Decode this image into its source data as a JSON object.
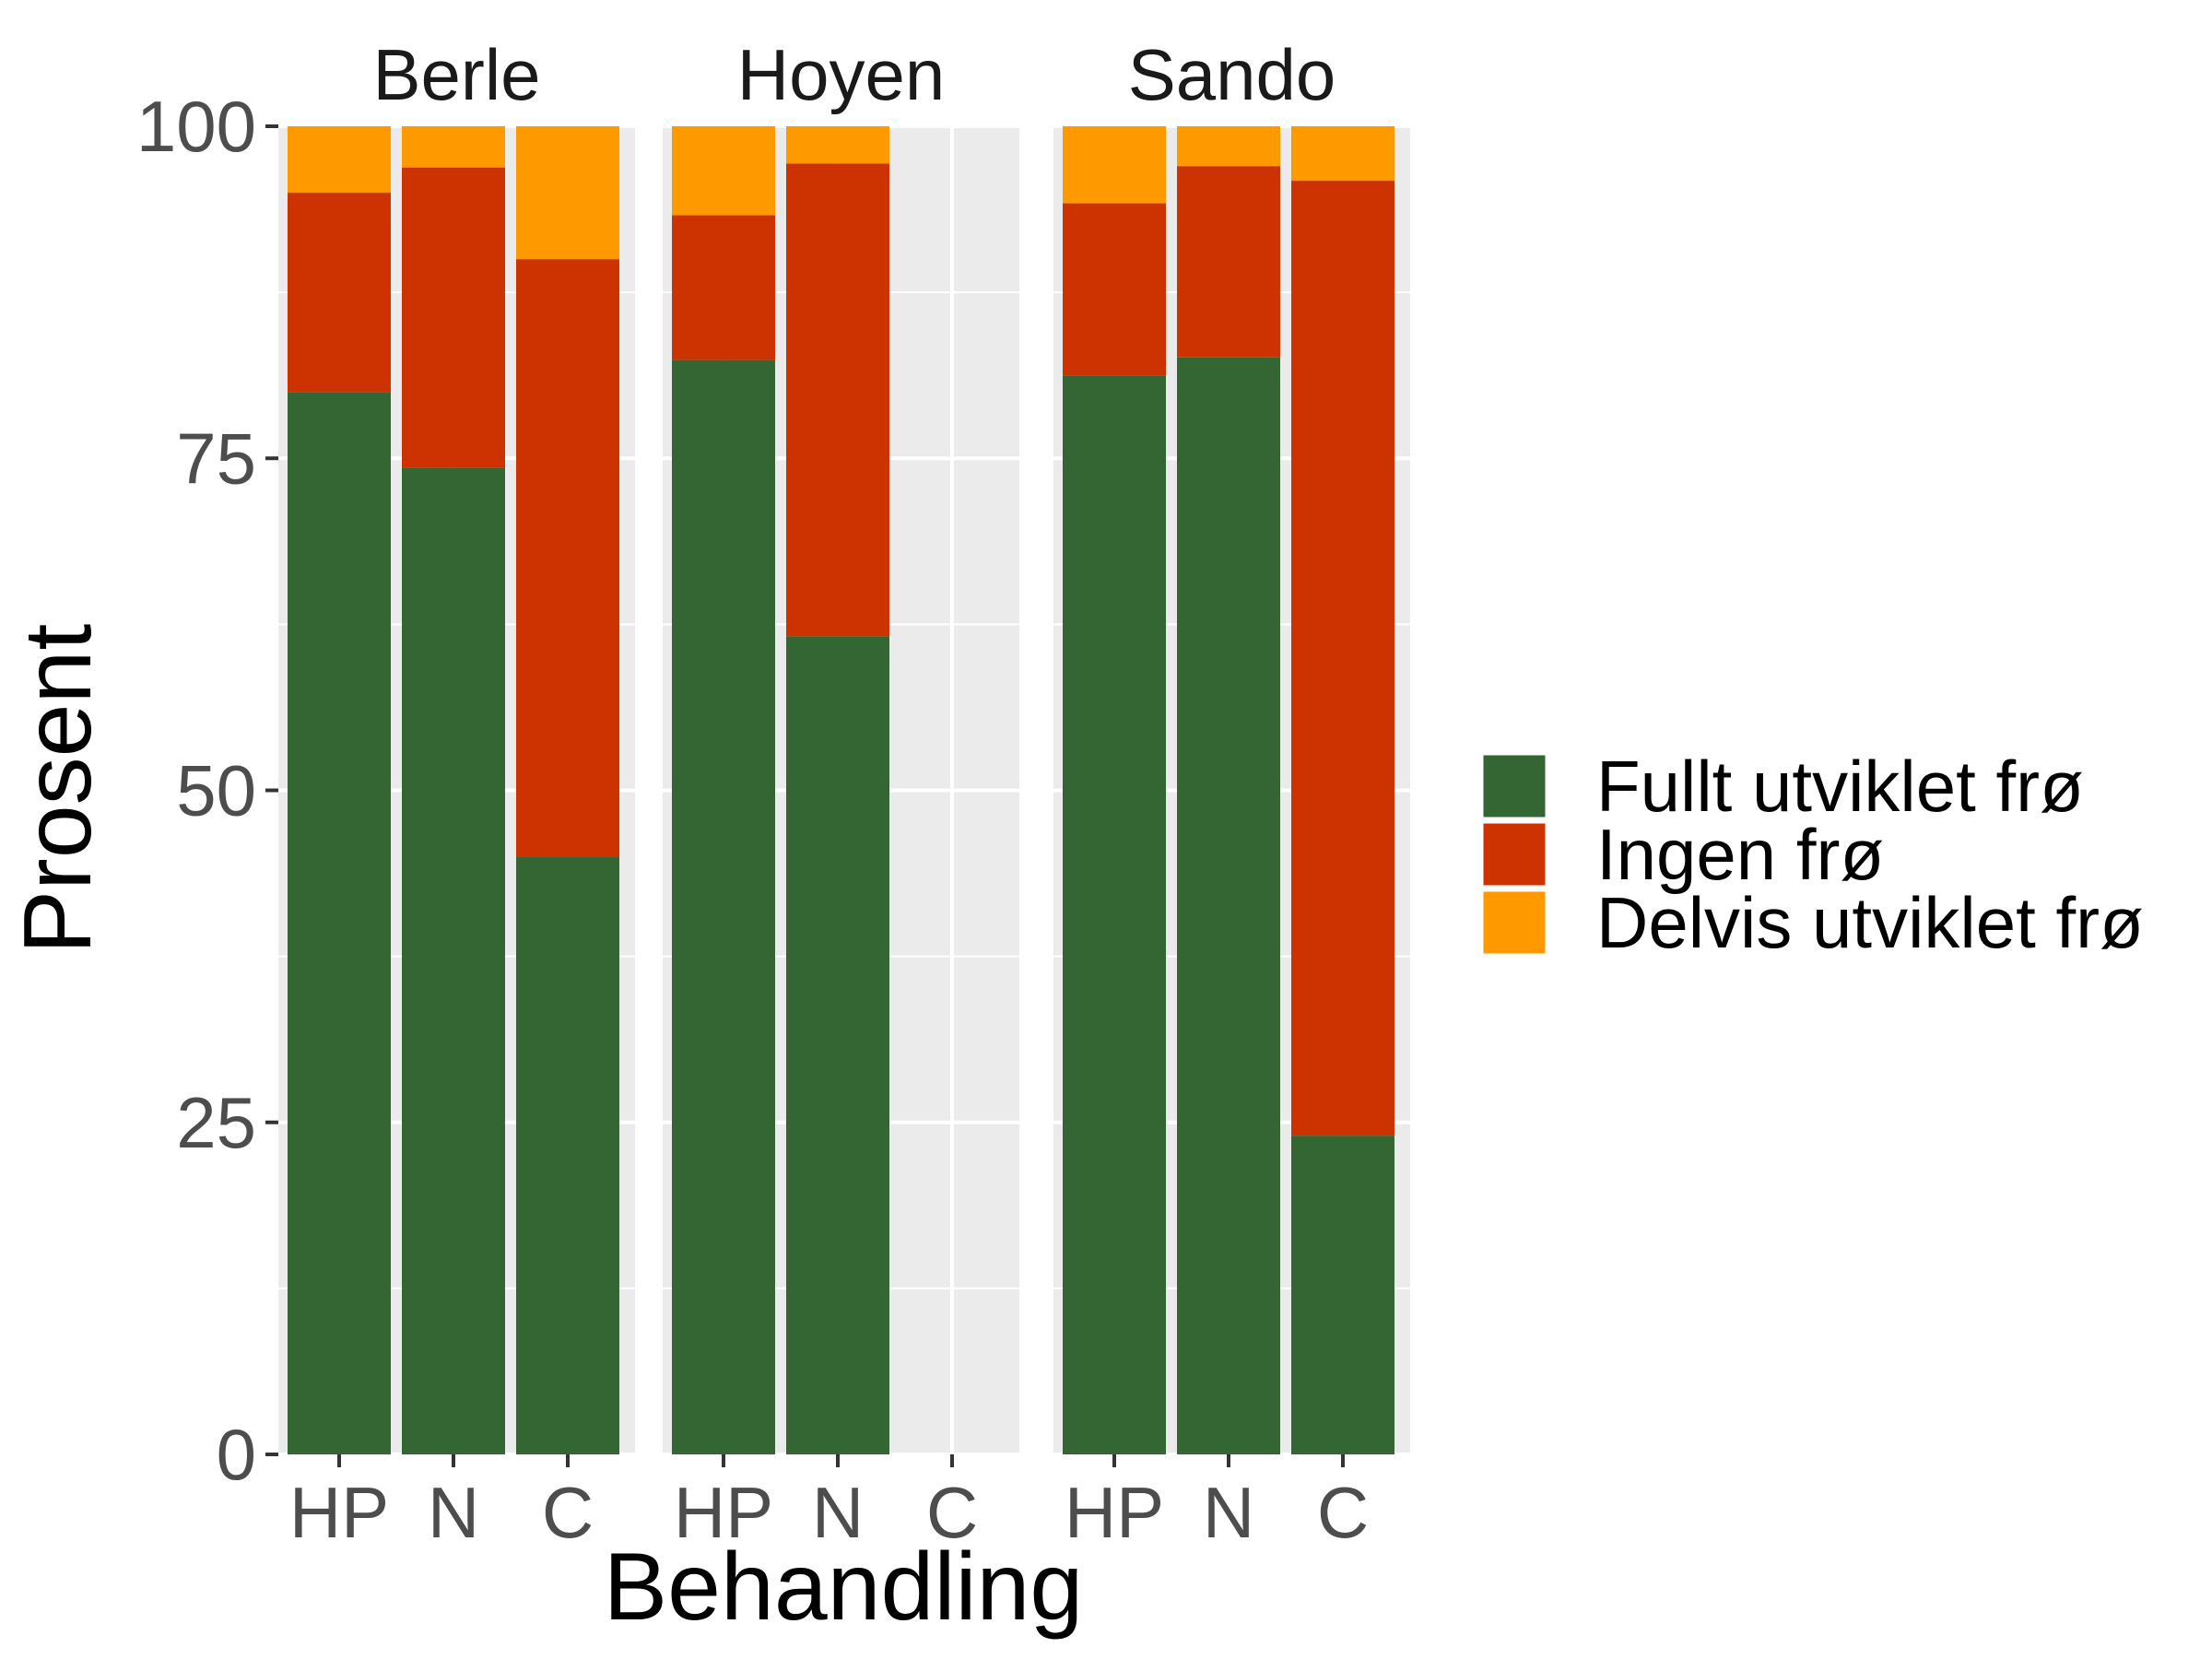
{
  "colors": {
    "fully_developed": "#336633",
    "no_seed": "#cc3300",
    "partially_developed": "#ff9900",
    "panel_background": "#ebebeb",
    "grid_line": "#ffffff",
    "tick_text": "#4d4d4d"
  },
  "chart_data": {
    "type": "bar",
    "stacked": true,
    "facet_by": "location",
    "xlabel": "Behandling",
    "ylabel": "Prosent",
    "ylim": [
      0,
      100
    ],
    "yticks": [
      0,
      25,
      50,
      75,
      100
    ],
    "grid": true,
    "legend_position": "right",
    "categories": [
      "HP",
      "N",
      "C"
    ],
    "legend": [
      {
        "key": "fully_developed",
        "label": "Fullt utviklet frø",
        "color": "#336633"
      },
      {
        "key": "no_seed",
        "label": "Ingen frø",
        "color": "#cc3300"
      },
      {
        "key": "partially_developed",
        "label": "Delvis utviklet frø",
        "color": "#ff9900"
      }
    ],
    "panels": [
      {
        "title": "Berle",
        "bars": [
          {
            "category": "HP",
            "fully_developed": 80,
            "no_seed": 15,
            "partially_developed": 5
          },
          {
            "category": "N",
            "fully_developed": 74.3,
            "no_seed": 22.6,
            "partially_developed": 3.1
          },
          {
            "category": "C",
            "fully_developed": 45,
            "no_seed": 45,
            "partially_developed": 10
          }
        ]
      },
      {
        "title": "Hoyen",
        "bars": [
          {
            "category": "HP",
            "fully_developed": 82.4,
            "no_seed": 10.9,
            "partially_developed": 6.7
          },
          {
            "category": "N",
            "fully_developed": 61.6,
            "no_seed": 35.6,
            "partially_developed": 2.8
          },
          {
            "category": "C",
            "fully_developed": null,
            "no_seed": null,
            "partially_developed": null
          }
        ]
      },
      {
        "title": "Sando",
        "bars": [
          {
            "category": "HP",
            "fully_developed": 81.2,
            "no_seed": 13,
            "partially_developed": 5.8
          },
          {
            "category": "N",
            "fully_developed": 82.6,
            "no_seed": 14.4,
            "partially_developed": 3
          },
          {
            "category": "C",
            "fully_developed": 24,
            "no_seed": 71.9,
            "partially_developed": 4.1
          }
        ]
      }
    ]
  }
}
